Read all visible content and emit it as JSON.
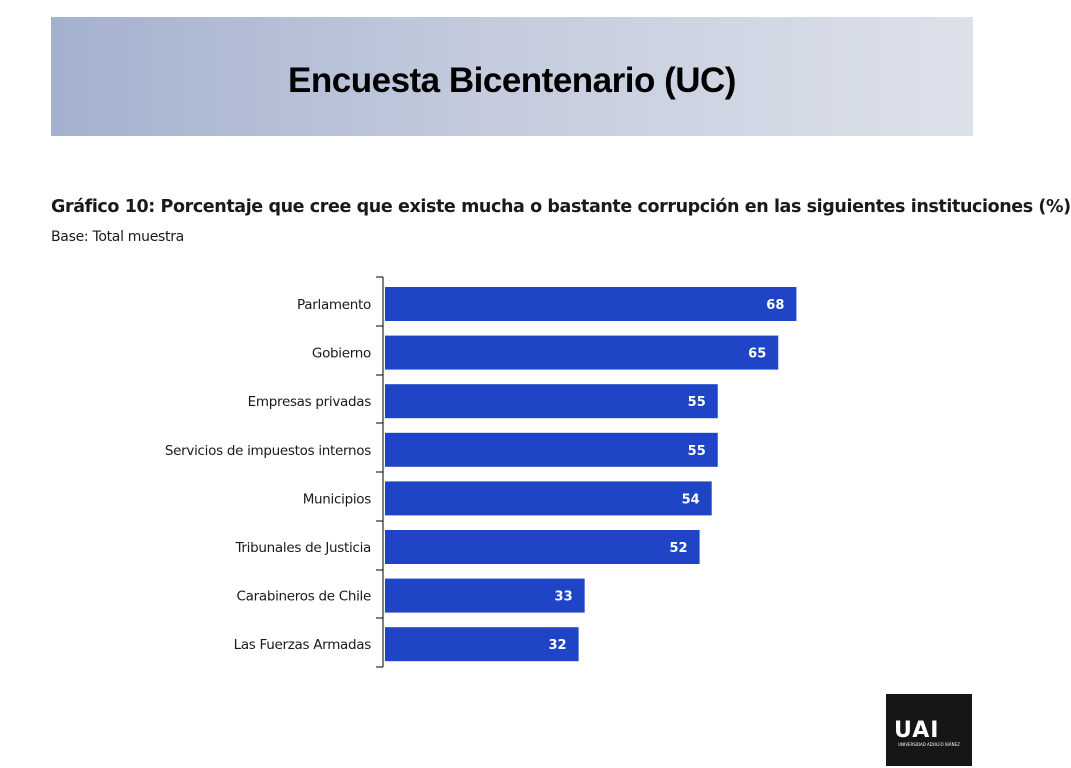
{
  "slide": {
    "title": "Encuesta Bicentenario (UC)"
  },
  "colors": {
    "bar": "#1f45c6",
    "header_gradient_start": "#a4b1ce",
    "header_gradient_end": "#dde1ea"
  },
  "chart_data": {
    "type": "bar",
    "orientation": "horizontal",
    "title": "Gráfico 10: Porcentaje que cree que existe mucha o bastante corrupción en las siguientes instituciones (%)",
    "subtitle": "Base: Total muestra",
    "categories": [
      "Parlamento",
      "Gobierno",
      "Empresas privadas",
      "Servicios de impuestos internos",
      "Municipios",
      "Tribunales de Justicia",
      "Carabineros de Chile",
      "Las Fuerzas Armadas"
    ],
    "values": [
      68,
      65,
      55,
      55,
      54,
      52,
      33,
      32
    ],
    "data_labels": true,
    "grid": false
  },
  "logo": {
    "icon": "university-logo-icon",
    "mark": "UAI",
    "caption": "UNIVERSIDAD ADOLFO IBÁÑEZ"
  }
}
